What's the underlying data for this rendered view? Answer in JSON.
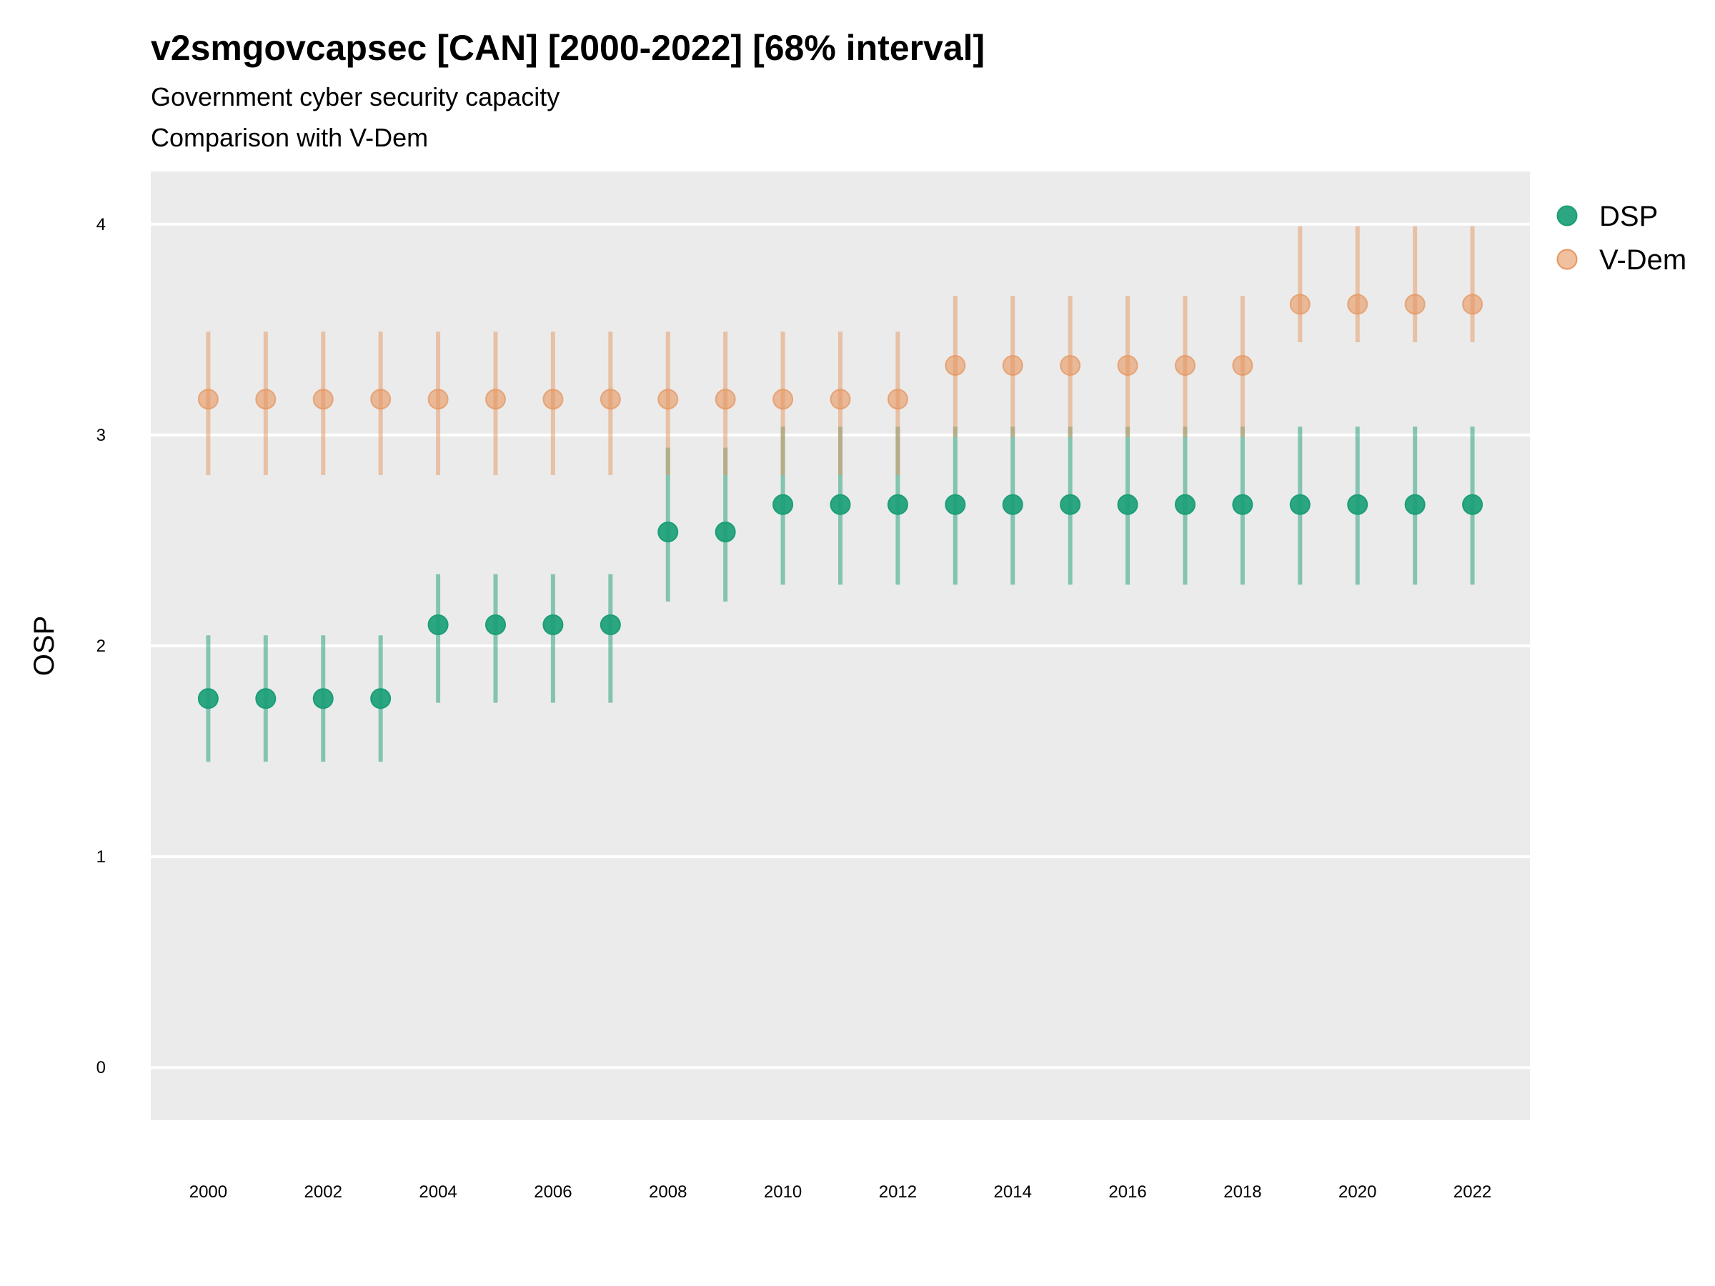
{
  "chart_data": {
    "type": "scatter",
    "title": "v2smgovcapsec [CAN] [2000-2022] [68% interval]",
    "subtitle": "Government cyber security capacity",
    "subtitle2": "Comparison with V-Dem",
    "xlabel": "",
    "ylabel": "OSP",
    "xlim": [
      1999,
      2023
    ],
    "ylim": [
      -0.25,
      4.25
    ],
    "x_ticks": [
      "2000",
      "2002",
      "2004",
      "2006",
      "2008",
      "2010",
      "2012",
      "2014",
      "2016",
      "2018",
      "2020",
      "2022"
    ],
    "y_ticks": [
      "0",
      "1",
      "2",
      "3",
      "4"
    ],
    "grid": true,
    "legend_position": "right",
    "x": [
      2000,
      2001,
      2002,
      2003,
      2004,
      2005,
      2006,
      2007,
      2008,
      2009,
      2010,
      2011,
      2012,
      2013,
      2014,
      2015,
      2016,
      2017,
      2018,
      2019,
      2020,
      2021,
      2022
    ],
    "series": [
      {
        "name": "DSP",
        "color": "#1b9e77",
        "values": [
          1.75,
          1.75,
          1.75,
          1.75,
          2.1,
          2.1,
          2.1,
          2.1,
          2.54,
          2.54,
          2.67,
          2.67,
          2.67,
          2.67,
          2.67,
          2.67,
          2.67,
          2.67,
          2.67,
          2.67,
          2.67,
          2.67,
          2.67
        ],
        "lower": [
          1.45,
          1.45,
          1.45,
          1.45,
          1.73,
          1.73,
          1.73,
          1.73,
          2.21,
          2.21,
          2.29,
          2.29,
          2.29,
          2.29,
          2.29,
          2.29,
          2.29,
          2.29,
          2.29,
          2.29,
          2.29,
          2.29,
          2.29
        ],
        "upper": [
          2.05,
          2.05,
          2.05,
          2.05,
          2.34,
          2.34,
          2.34,
          2.34,
          2.94,
          2.94,
          3.04,
          3.04,
          3.04,
          3.04,
          3.04,
          3.04,
          3.04,
          3.04,
          3.04,
          3.04,
          3.04,
          3.04,
          3.04
        ]
      },
      {
        "name": "V-Dem",
        "color": "#e6965f",
        "values": [
          3.17,
          3.17,
          3.17,
          3.17,
          3.17,
          3.17,
          3.17,
          3.17,
          3.17,
          3.17,
          3.17,
          3.17,
          3.17,
          3.33,
          3.33,
          3.33,
          3.33,
          3.33,
          3.33,
          3.62,
          3.62,
          3.62,
          3.62
        ],
        "lower": [
          2.81,
          2.81,
          2.81,
          2.81,
          2.81,
          2.81,
          2.81,
          2.81,
          2.81,
          2.81,
          2.81,
          2.81,
          2.81,
          2.99,
          2.99,
          2.99,
          2.99,
          2.99,
          2.99,
          3.44,
          3.44,
          3.44,
          3.44
        ],
        "upper": [
          3.49,
          3.49,
          3.49,
          3.49,
          3.49,
          3.49,
          3.49,
          3.49,
          3.49,
          3.49,
          3.49,
          3.49,
          3.49,
          3.66,
          3.66,
          3.66,
          3.66,
          3.66,
          3.66,
          3.99,
          3.99,
          3.99,
          3.99
        ]
      }
    ]
  }
}
